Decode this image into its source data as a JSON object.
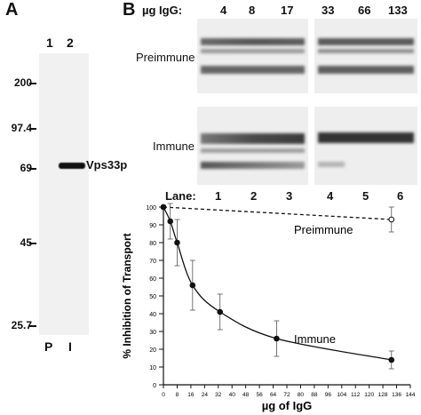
{
  "panel_a": {
    "letter": "A",
    "lanes": [
      "1",
      "2"
    ],
    "markers": [
      "200",
      "97.4",
      "69",
      "45",
      "25.7"
    ],
    "band_label": "Vps33p",
    "bottom_labels": [
      "P",
      "I"
    ]
  },
  "panel_b": {
    "letter": "B",
    "igg_header": "µg IgG:",
    "igg_amounts": [
      "4",
      "8",
      "17",
      "33",
      "66",
      "133"
    ],
    "row_labels": {
      "preimmune": "Preimmune",
      "immune": "Immune"
    },
    "lane_header": "Lane:",
    "lanes": [
      "1",
      "2",
      "3",
      "4",
      "5",
      "6"
    ]
  },
  "chart_data": {
    "type": "line",
    "xlabel": "µg of IgG",
    "ylabel": "% Inhibition of Transport",
    "xlim": [
      0,
      144
    ],
    "ylim": [
      0,
      100
    ],
    "xticks": [
      "0",
      "8",
      "16",
      "24",
      "32",
      "40",
      "48",
      "56",
      "64",
      "72",
      "80",
      "88",
      "96",
      "104",
      "112",
      "120",
      "128",
      "136",
      "144"
    ],
    "yticks": [
      "0",
      "10",
      "20",
      "30",
      "40",
      "50",
      "60",
      "70",
      "80",
      "90",
      "100"
    ],
    "grid": false,
    "series": [
      {
        "name": "Preimmune",
        "style": "dashed",
        "marker": "open-circle",
        "x": [
          0,
          133
        ],
        "y": [
          100,
          93
        ],
        "err": [
          0,
          7
        ]
      },
      {
        "name": "Immune",
        "style": "solid",
        "marker": "filled-circle",
        "x": [
          0,
          4,
          8,
          17,
          33,
          66,
          133
        ],
        "y": [
          100,
          92,
          80,
          56,
          41,
          26,
          14
        ],
        "err": [
          0,
          10,
          13,
          14,
          10,
          10,
          5
        ]
      }
    ]
  }
}
